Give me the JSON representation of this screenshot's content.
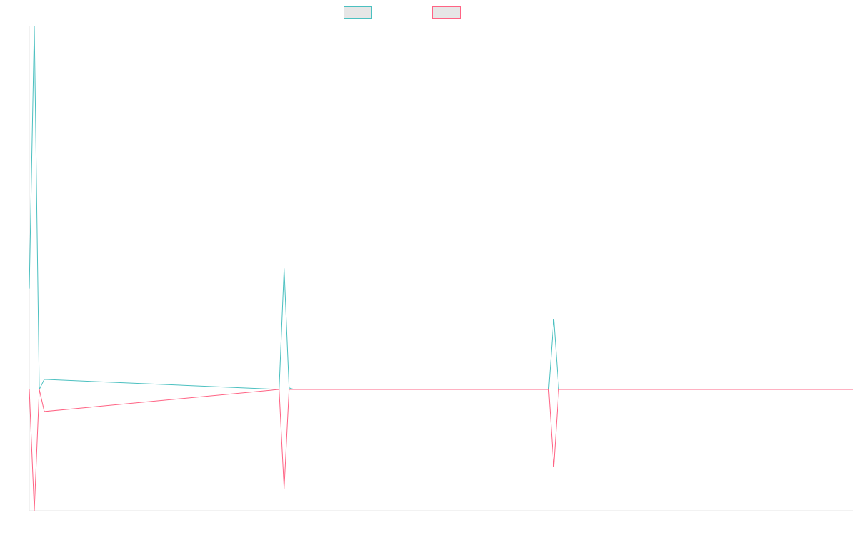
{
  "chart_data": {
    "type": "line",
    "title": "",
    "xlabel": "",
    "ylabel": "",
    "x": [
      0,
      1,
      2,
      3,
      50,
      51,
      52,
      53,
      104,
      105,
      106,
      165
    ],
    "xlim": [
      0,
      165
    ],
    "ylim": [
      -16,
      72
    ],
    "grid": false,
    "legend": {
      "position": "top-center",
      "entries": [
        {
          "label": "",
          "color": "#4bc0c0",
          "fill": "#e6e6e6"
        },
        {
          "label": "",
          "color": "#ff6384",
          "fill": "#e6e6e6"
        }
      ]
    },
    "series": [
      {
        "color": "#4bc0c0",
        "values": [
          20,
          72,
          0,
          2,
          0,
          24,
          0.3,
          0,
          0,
          14,
          0,
          0
        ]
      },
      {
        "color": "#ff6384",
        "values": [
          0,
          -22,
          0,
          -4,
          0,
          -18,
          0,
          0,
          0,
          -14,
          0,
          0
        ]
      }
    ]
  }
}
